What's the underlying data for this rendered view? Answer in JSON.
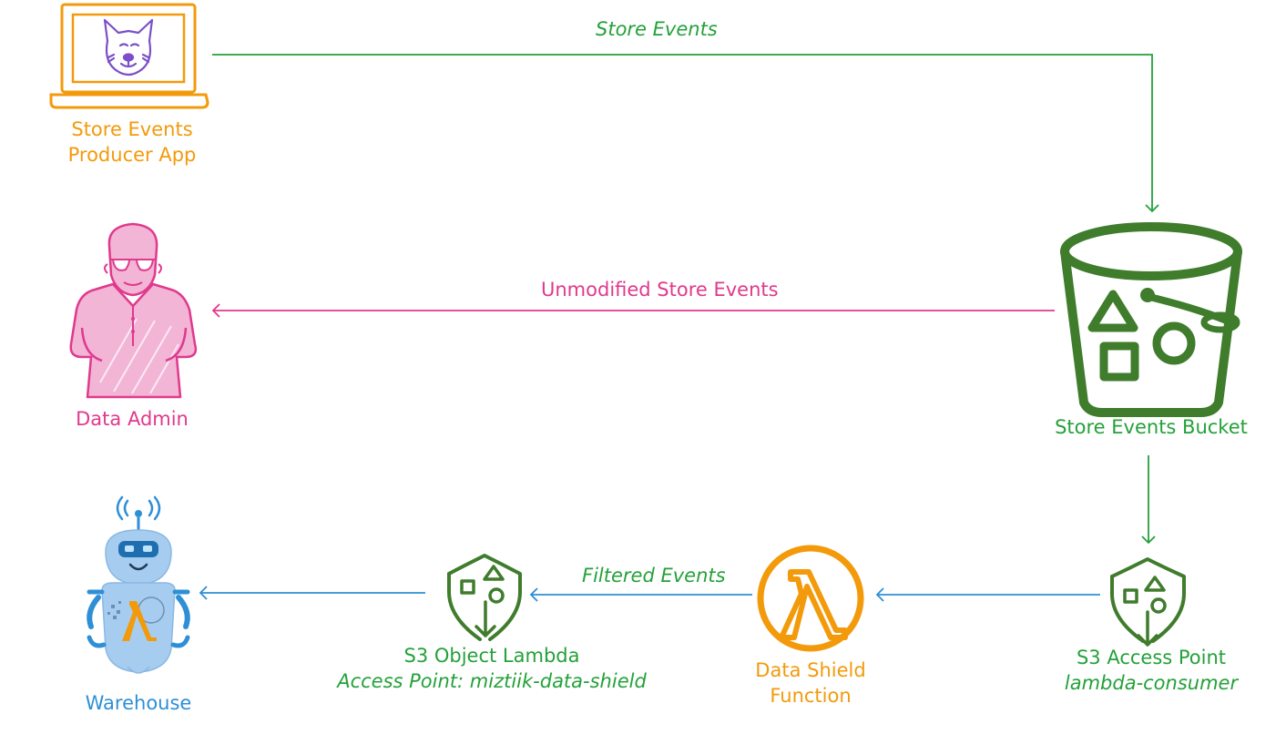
{
  "nodes": {
    "producer": {
      "line1": "Store Events",
      "line2": "Producer App"
    },
    "admin": {
      "label": "Data Admin"
    },
    "bucket": {
      "label": "Store Events Bucket"
    },
    "access_point": {
      "line1": "S3 Access Point",
      "line2": "lambda-consumer"
    },
    "lambda_fn": {
      "line1": "Data Shield",
      "line2": "Function"
    },
    "olap": {
      "line1": "S3 Object Lambda",
      "line2": "Access Point: miztiik-data-shield"
    },
    "warehouse": {
      "label": "Warehouse"
    }
  },
  "edges": {
    "store_events": "Store Events",
    "unmodified": "Unmodified Store Events",
    "filtered": "Filtered Events"
  },
  "colors": {
    "green": "#24a13a",
    "dark_green": "#3f7c2c",
    "pink": "#e0398d",
    "orange": "#f39a0b",
    "blue": "#2e8fd6",
    "purple": "#7b4fc9"
  }
}
